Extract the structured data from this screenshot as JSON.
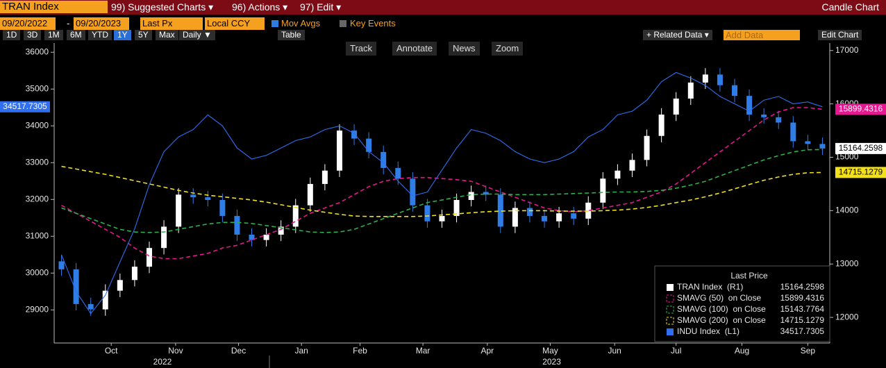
{
  "ui": {
    "security": "TRAN Index",
    "menu": [
      "99) Suggested Charts ▾",
      "96) Actions ▾",
      "97) Edit ▾"
    ],
    "view": "Candle Chart",
    "start_date": "09/20/2022",
    "date_separator": "-",
    "end_date": "09/20/2023",
    "field": "Last Px",
    "currency": "Local CCY",
    "toggles": [
      "Mov Avgs",
      "Key Events"
    ],
    "periods": [
      "1D",
      "3D",
      "1M",
      "6M",
      "YTD",
      "1Y",
      "5Y",
      "Max"
    ],
    "selected_period": 5,
    "frequency": "Daily ▼",
    "table": "Table",
    "related": "+ Related Data ▾",
    "add_data": "Add Data",
    "edit_chart": "Edit Chart",
    "tools": [
      "Track",
      "Annotate",
      "News",
      "Zoom"
    ]
  },
  "chart_data": {
    "type": "candlestick",
    "ylim": [
      28100,
      36250
    ],
    "yticks": [
      29000,
      30000,
      31000,
      32000,
      33000,
      34000,
      35000,
      36000
    ],
    "y2lim": [
      11520,
      17140
    ],
    "y2ticks": [
      12000,
      13000,
      14000,
      15000,
      16000,
      17000
    ],
    "xticks": [
      {
        "value": 3.4,
        "label": "Oct"
      },
      {
        "value": 7.8,
        "label": "Nov"
      },
      {
        "value": 12.1,
        "label": "Dec"
      },
      {
        "value": 16.4,
        "label": "Jan"
      },
      {
        "value": 20.4,
        "label": "Feb"
      },
      {
        "value": 24.7,
        "label": "Mar"
      },
      {
        "value": 29.1,
        "label": "Apr"
      },
      {
        "value": 33.4,
        "label": "May"
      },
      {
        "value": 37.8,
        "label": "Jun"
      },
      {
        "value": 42.0,
        "label": "Jul"
      },
      {
        "value": 46.5,
        "label": "Aug"
      },
      {
        "value": 51.0,
        "label": "Sep"
      }
    ],
    "years": [
      {
        "value": 6.9,
        "label": "2022"
      },
      {
        "value": 33.5,
        "label": "2023"
      }
    ],
    "legend_title": "Last Price",
    "candles": {
      "name": "TRAN Index  (R1)",
      "axis": "y2",
      "up_color": "#ffffff",
      "down_color": "#2f7ee8",
      "flag": true,
      "open": [
        13050,
        12900,
        12250,
        12150,
        12500,
        12700,
        12950,
        13300,
        13700,
        14300,
        14250,
        14200,
        13900,
        13550,
        13450,
        13550,
        13700,
        14100,
        14500,
        14750,
        15500,
        15350,
        15100,
        14800,
        14600,
        14100,
        13800,
        13900,
        14200,
        14350,
        14300,
        13700,
        14050,
        13900,
        13800,
        13950,
        13850,
        14150,
        14600,
        14750,
        14950,
        15400,
        15800,
        16100,
        16400,
        16550,
        16350,
        16150,
        15800,
        15750,
        15650,
        15300,
        15250
      ],
      "high": [
        13170,
        13020,
        12370,
        12620,
        12820,
        13070,
        13420,
        13820,
        14420,
        14420,
        14370,
        14320,
        14020,
        13670,
        13670,
        13820,
        14220,
        14620,
        14870,
        15620,
        15620,
        15470,
        15220,
        14920,
        14720,
        14220,
        14020,
        14320,
        14470,
        14470,
        14420,
        14170,
        14170,
        14020,
        14070,
        14070,
        14270,
        14720,
        14870,
        15070,
        15520,
        15920,
        16220,
        16520,
        16670,
        16670,
        16470,
        16270,
        15920,
        15870,
        15770,
        15420,
        15370
      ],
      "low": [
        12780,
        12130,
        12030,
        12030,
        12380,
        12580,
        12830,
        13180,
        13580,
        14130,
        14080,
        13780,
        13430,
        13330,
        13330,
        13430,
        13580,
        13980,
        14380,
        14630,
        15230,
        14980,
        14680,
        14480,
        13980,
        13680,
        13680,
        13780,
        14080,
        14180,
        13580,
        13580,
        13780,
        13680,
        13680,
        13730,
        13730,
        14030,
        14480,
        14630,
        14830,
        15280,
        15680,
        15980,
        16280,
        16230,
        16030,
        15680,
        15630,
        15530,
        15180,
        15130,
        15044
      ],
      "close": [
        12900,
        12250,
        12150,
        12500,
        12700,
        12950,
        13300,
        13700,
        14300,
        14250,
        14200,
        13900,
        13550,
        13450,
        13550,
        13700,
        14100,
        14500,
        14750,
        15500,
        15350,
        15100,
        14800,
        14600,
        14100,
        13800,
        13900,
        14200,
        14350,
        14300,
        13700,
        14050,
        13900,
        13800,
        13950,
        13850,
        14150,
        14600,
        14750,
        14950,
        15400,
        15800,
        16100,
        16400,
        16550,
        16350,
        16150,
        15800,
        15750,
        15650,
        15300,
        15250,
        15164.2598
      ]
    },
    "series": [
      {
        "name": "SMAVG (50)  on Close",
        "color": "#e8168f",
        "axis": "y2",
        "dashed": true,
        "flag": true,
        "values": [
          14100,
          13950,
          13800,
          13650,
          13500,
          13300,
          13150,
          13100,
          13100,
          13150,
          13200,
          13300,
          13350,
          13450,
          13550,
          13650,
          13800,
          13950,
          14050,
          14150,
          14300,
          14450,
          14550,
          14600,
          14620,
          14620,
          14600,
          14580,
          14550,
          14450,
          14350,
          14250,
          14150,
          14050,
          14000,
          13980,
          14000,
          14050,
          14100,
          14150,
          14250,
          14350,
          14500,
          14700,
          14900,
          15100,
          15300,
          15500,
          15700,
          15850,
          15930,
          15930,
          15899.4316
        ]
      },
      {
        "name": "SMAVG (100)  on Close",
        "color": "#2bb24c",
        "axis": "y2",
        "dashed": true,
        "flag": false,
        "values": [
          14050,
          13950,
          13850,
          13750,
          13650,
          13600,
          13590,
          13600,
          13650,
          13700,
          13750,
          13780,
          13780,
          13760,
          13720,
          13680,
          13640,
          13600,
          13590,
          13600,
          13650,
          13750,
          13850,
          13950,
          14050,
          14150,
          14200,
          14250,
          14300,
          14310,
          14310,
          14300,
          14300,
          14300,
          14310,
          14320,
          14330,
          14340,
          14350,
          14350,
          14360,
          14380,
          14420,
          14480,
          14550,
          14650,
          14750,
          14850,
          14950,
          15030,
          15100,
          15140,
          15143.7764
        ]
      },
      {
        "name": "SMAVG (200)  on Close",
        "color": "#f2e01a",
        "axis": "y2",
        "dashed": true,
        "flag": true,
        "values": [
          14830,
          14780,
          14730,
          14680,
          14620,
          14560,
          14500,
          14440,
          14380,
          14330,
          14290,
          14260,
          14230,
          14200,
          14160,
          14110,
          14060,
          14010,
          13970,
          13930,
          13900,
          13890,
          13890,
          13890,
          13890,
          13900,
          13920,
          13940,
          13960,
          13980,
          13990,
          14000,
          14000,
          14000,
          13990,
          13990,
          13990,
          14000,
          14010,
          14030,
          14060,
          14100,
          14150,
          14200,
          14260,
          14330,
          14410,
          14490,
          14570,
          14630,
          14680,
          14710,
          14715.1279
        ]
      },
      {
        "name": "INDU Index  (L1)",
        "color": "#2f6ff0",
        "axis": "y",
        "dashed": false,
        "flag": true,
        "values": [
          30500,
          29500,
          28900,
          29400,
          30300,
          31200,
          32400,
          33300,
          33700,
          33900,
          34300,
          34000,
          33400,
          33100,
          33200,
          33400,
          33600,
          33700,
          33900,
          34000,
          33800,
          33300,
          33000,
          32500,
          32100,
          32200,
          32800,
          33400,
          33900,
          33800,
          33600,
          33300,
          33100,
          33000,
          33100,
          33300,
          33700,
          33900,
          34300,
          34400,
          34700,
          35200,
          35450,
          35300,
          35100,
          34800,
          34600,
          34400,
          34700,
          34800,
          34600,
          34650,
          34517.7305
        ]
      }
    ]
  }
}
